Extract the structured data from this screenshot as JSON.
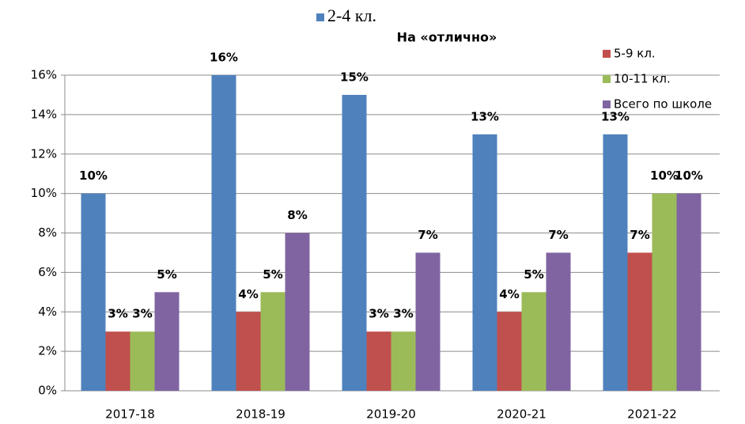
{
  "chart_data": {
    "type": "bar",
    "title": "На «отлично»",
    "categories": [
      "2017-18",
      "2018-19",
      "2019-20",
      "2020-21",
      "2021-22"
    ],
    "series": [
      {
        "name": "2-4 кл.",
        "color": "#4f81bd",
        "values": [
          10,
          16,
          15,
          13,
          13
        ],
        "value_labels": [
          "10%",
          "16%",
          "15%",
          "13%",
          "13%"
        ]
      },
      {
        "name": "5-9 кл.",
        "color": "#c0504d",
        "values": [
          3,
          4,
          3,
          4,
          7
        ],
        "value_labels": [
          "3%",
          "4%",
          "3%",
          "4%",
          "7%"
        ]
      },
      {
        "name": "10-11 кл.",
        "color": "#9bbb59",
        "values": [
          3,
          5,
          3,
          5,
          10
        ],
        "value_labels": [
          "3%",
          "5%",
          "3%",
          "5%",
          "10%"
        ]
      },
      {
        "name": "Всего по школе",
        "color": "#8064a2",
        "values": [
          5,
          8,
          7,
          7,
          10
        ],
        "value_labels": [
          "5%",
          "8%",
          "7%",
          "7%",
          "10%"
        ]
      }
    ],
    "ylim": [
      0,
      16
    ],
    "yticks": [
      {
        "value": 0,
        "label": "0%"
      },
      {
        "value": 2,
        "label": "2%"
      },
      {
        "value": 4,
        "label": "4%"
      },
      {
        "value": 6,
        "label": "6%"
      },
      {
        "value": 8,
        "label": "8%"
      },
      {
        "value": 10,
        "label": "10%"
      },
      {
        "value": 12,
        "label": "12%"
      },
      {
        "value": 14,
        "label": "14%"
      },
      {
        "value": 16,
        "label": "16%"
      }
    ],
    "grid": true
  }
}
